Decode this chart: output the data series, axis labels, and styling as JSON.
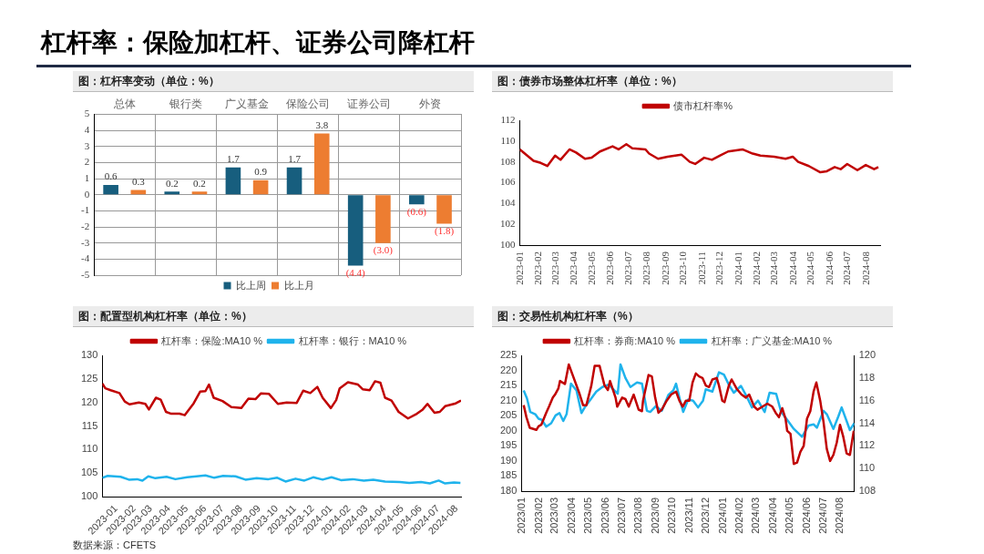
{
  "chart_data": [
    {
      "type": "bar",
      "title": "杠杆率：保险加杠杆、证券公司降杠杆",
      "subtitle": "图：杠杆率变动（单位：%）",
      "categories": [
        "总体",
        "银行类",
        "广义基金",
        "保险公司",
        "证券公司",
        "外资"
      ],
      "series": [
        {
          "name": "比上周",
          "color": "#175e7e",
          "values": [
            0.6,
            0.2,
            1.7,
            1.7,
            -4.4,
            -0.6
          ],
          "value_labels": [
            "0.6",
            "0.2",
            "1.7",
            "1.7",
            "(4.4)",
            "(0.6)"
          ]
        },
        {
          "name": "比上月",
          "color": "#ed7d31",
          "values": [
            0.3,
            0.2,
            0.9,
            3.8,
            -3.0,
            -1.8
          ],
          "value_labels": [
            "0.3",
            "0.2",
            "0.9",
            "3.8",
            "(3.0)",
            "(1.8)"
          ]
        }
      ],
      "ylim": [
        -5,
        5
      ],
      "yticks": [
        -5,
        -4,
        -3,
        -2,
        -1,
        0,
        1,
        2,
        3,
        4,
        5
      ],
      "grid": true,
      "legend": "bottom"
    },
    {
      "type": "line",
      "subtitle": "图：债券市场整体杠杆率（单位：%）",
      "marker": "none",
      "legend": "top",
      "xlim": [
        "2023-01-01",
        "2024-08-25"
      ],
      "xticks": [
        "2023-01",
        "2023-02",
        "2023-03",
        "2023-04",
        "2023-05",
        "2023-06",
        "2023-07",
        "2023-08",
        "2023-09",
        "2023-10",
        "2023-11",
        "2023-12",
        "2024-01",
        "2024-02",
        "2024-03",
        "2024-04",
        "2024-05",
        "2024-06",
        "2024-07",
        "2024-08"
      ],
      "ylim": [
        100,
        112
      ],
      "yticks": [
        100,
        102,
        104,
        106,
        108,
        110,
        112
      ],
      "series": [
        {
          "name": "债市杠杆率%",
          "color": "#c00000",
          "x": [
            "2023-01-01",
            "2023-01-24",
            "2023-02-05",
            "2023-02-16",
            "2023-03-01",
            "2023-03-10",
            "2023-03-25",
            "2023-04-05",
            "2023-04-20",
            "2023-05-01",
            "2023-05-15",
            "2023-06-05",
            "2023-06-15",
            "2023-06-28",
            "2023-07-08",
            "2023-07-30",
            "2023-08-05",
            "2023-08-20",
            "2023-09-05",
            "2023-09-28",
            "2023-10-12",
            "2023-10-21",
            "2023-11-05",
            "2023-11-18",
            "2023-12-01",
            "2023-12-15",
            "2024-01-08",
            "2024-01-25",
            "2024-02-07",
            "2024-03-01",
            "2024-03-20",
            "2024-04-01",
            "2024-04-10",
            "2024-04-28",
            "2024-05-17",
            "2024-05-28",
            "2024-06-10",
            "2024-06-20",
            "2024-07-01",
            "2024-07-18",
            "2024-08-01",
            "2024-08-15",
            "2024-08-22"
          ],
          "values": [
            109.2,
            108.1,
            107.9,
            107.6,
            108.6,
            108.2,
            109.2,
            108.9,
            108.3,
            108.4,
            109.0,
            109.5,
            109.2,
            109.7,
            109.3,
            109.2,
            108.8,
            108.3,
            108.5,
            108.7,
            108.0,
            107.8,
            108.4,
            108.2,
            108.6,
            109.0,
            109.2,
            108.8,
            108.6,
            108.5,
            108.3,
            108.5,
            108.0,
            107.6,
            107.0,
            107.1,
            107.5,
            107.3,
            107.8,
            107.2,
            107.7,
            107.3,
            107.5
          ]
        }
      ]
    },
    {
      "type": "line",
      "subtitle": "图：配置型机构杠杆率（单位：%）",
      "marker": "none",
      "legend": "top",
      "annotations": [
        "数据来源：CFETS"
      ],
      "xlim": [
        "2023-01-01",
        "2024-09-01"
      ],
      "xticks": [
        "2023-01",
        "2023-02",
        "2023-03",
        "2023-04",
        "2023-05",
        "2023-06",
        "2023-07",
        "2023-08",
        "2023-09",
        "2023-10",
        "2023-11",
        "2023-12",
        "2024-01",
        "2024-02",
        "2024-03",
        "2024-04",
        "2024-05",
        "2024-06",
        "2024-07",
        "2024-08"
      ],
      "ylim": [
        100,
        130
      ],
      "yticks": [
        100,
        105,
        110,
        115,
        120,
        125,
        130
      ],
      "series": [
        {
          "name": "杠杆率：保险:MA10 %",
          "color": "#c00000",
          "x": [
            "2023-01-01",
            "2023-01-06",
            "2023-01-15",
            "2023-01-30",
            "2023-02-08",
            "2023-02-16",
            "2023-03-04",
            "2023-03-15",
            "2023-03-21",
            "2023-04-02",
            "2023-04-10",
            "2023-04-19",
            "2023-04-28",
            "2023-05-12",
            "2023-05-21",
            "2023-06-05",
            "2023-06-16",
            "2023-06-25",
            "2023-07-01",
            "2023-07-09",
            "2023-07-24",
            "2023-08-08",
            "2023-08-25",
            "2023-09-06",
            "2023-09-18",
            "2023-09-27",
            "2023-10-11",
            "2023-10-26",
            "2023-11-10",
            "2023-11-27",
            "2023-12-08",
            "2023-12-20",
            "2024-01-01",
            "2024-01-10",
            "2024-01-24",
            "2024-02-02",
            "2024-02-08",
            "2024-02-22",
            "2024-03-10",
            "2024-03-18",
            "2024-03-30",
            "2024-04-08",
            "2024-04-17",
            "2024-04-25",
            "2024-05-06",
            "2024-05-18",
            "2024-06-03",
            "2024-06-18",
            "2024-06-28",
            "2024-07-06",
            "2024-07-18",
            "2024-07-27",
            "2024-08-05",
            "2024-08-23",
            "2024-09-01"
          ],
          "values": [
            124.0,
            123.0,
            122.6,
            122.0,
            120.2,
            119.6,
            120.0,
            119.7,
            118.5,
            121.0,
            120.6,
            118.0,
            117.6,
            117.6,
            117.3,
            119.8,
            122.3,
            122.4,
            123.8,
            121.0,
            120.3,
            119.0,
            118.8,
            120.8,
            120.7,
            121.9,
            121.8,
            119.7,
            120.0,
            119.9,
            122.5,
            122.0,
            123.3,
            121.0,
            118.8,
            120.5,
            123.0,
            124.3,
            123.8,
            122.8,
            122.6,
            124.5,
            124.2,
            121.0,
            120.4,
            118.0,
            116.6,
            117.6,
            118.5,
            119.7,
            117.8,
            118.0,
            119.2,
            119.8,
            120.4
          ]
        },
        {
          "name": "杠杆率：银行：MA10 %",
          "color": "#1fb3ec",
          "x": [
            "2023-01-01",
            "2023-01-10",
            "2023-02-01",
            "2023-02-15",
            "2023-03-01",
            "2023-03-10",
            "2023-03-20",
            "2023-04-01",
            "2023-04-20",
            "2023-05-05",
            "2023-05-25",
            "2023-06-10",
            "2023-06-25",
            "2023-07-10",
            "2023-07-25",
            "2023-08-15",
            "2023-09-01",
            "2023-09-20",
            "2023-10-10",
            "2023-10-25",
            "2023-11-08",
            "2023-11-25",
            "2023-12-10",
            "2023-12-25",
            "2024-01-10",
            "2024-01-25",
            "2024-02-10",
            "2024-03-01",
            "2024-03-20",
            "2024-04-05",
            "2024-04-25",
            "2024-05-20",
            "2024-06-05",
            "2024-06-25",
            "2024-07-10",
            "2024-07-25",
            "2024-08-05",
            "2024-08-20",
            "2024-08-31"
          ],
          "values": [
            104.0,
            104.4,
            104.2,
            103.6,
            103.7,
            103.4,
            104.3,
            103.9,
            104.2,
            103.7,
            104.1,
            104.3,
            104.5,
            104.0,
            104.4,
            104.3,
            103.6,
            103.9,
            103.7,
            104.0,
            103.2,
            103.8,
            103.4,
            104.1,
            103.6,
            104.1,
            103.5,
            103.7,
            103.4,
            103.6,
            103.2,
            103.1,
            102.9,
            103.1,
            102.8,
            103.4,
            102.8,
            103.0,
            102.9
          ]
        }
      ]
    },
    {
      "type": "line",
      "subtitle": "图：交易性机构杠杆率（%）",
      "marker": "none",
      "legend": "top",
      "xlim": [
        "2023-01-01",
        "2024-08-28"
      ],
      "xticks": [
        {
          "value": "2023-01",
          "label": "2023/01"
        },
        {
          "value": "2023-02",
          "label": "2023/02"
        },
        {
          "value": "2023-03",
          "label": "2023/03"
        },
        {
          "value": "2023-04",
          "label": "2023/04"
        },
        {
          "value": "2023-05",
          "label": "2023/05"
        },
        {
          "value": "2023-06",
          "label": "2023/06"
        },
        {
          "value": "2023-07",
          "label": "2023/07"
        },
        {
          "value": "2023-08",
          "label": "2023/08"
        },
        {
          "value": "2023-09",
          "label": "2023/09"
        },
        {
          "value": "2023-10",
          "label": "2023/10"
        },
        {
          "value": "2023-11",
          "label": "2023/11"
        },
        {
          "value": "2023-12",
          "label": "2023/12"
        },
        {
          "value": "2024-01",
          "label": "2024/01"
        },
        {
          "value": "2024-02",
          "label": "2024/02"
        },
        {
          "value": "2024-03",
          "label": "2024/03"
        },
        {
          "value": "2024-04",
          "label": "2024/04"
        },
        {
          "value": "2024-05",
          "label": "2024/05"
        },
        {
          "value": "2024-06",
          "label": "2024/06"
        },
        {
          "value": "2024-07",
          "label": "2024/07"
        },
        {
          "value": "2024-08",
          "label": "2024/08"
        }
      ],
      "ylim": [
        180,
        225
      ],
      "yticks": [
        180,
        185,
        190,
        195,
        200,
        205,
        210,
        215,
        220,
        225
      ],
      "y2lim": [
        108,
        120
      ],
      "y2ticks": [
        108,
        110,
        112,
        114,
        116,
        118,
        120
      ],
      "series": [
        {
          "name": "杠杆率：券商:MA10 %",
          "color": "#c00000",
          "x": [
            "2023-01-05",
            "2023-01-10",
            "2023-01-16",
            "2023-01-28",
            "2023-02-01",
            "2023-02-06",
            "2023-02-15",
            "2023-02-20",
            "2023-02-27",
            "2023-03-03",
            "2023-03-09",
            "2023-03-12",
            "2023-03-21",
            "2023-03-28",
            "2023-04-03",
            "2023-04-17",
            "2023-04-23",
            "2023-04-29",
            "2023-05-08",
            "2023-05-14",
            "2023-05-23",
            "2023-06-01",
            "2023-06-07",
            "2023-06-11",
            "2023-06-21",
            "2023-06-24",
            "2023-07-03",
            "2023-07-09",
            "2023-07-15",
            "2023-07-24",
            "2023-08-02",
            "2023-08-08",
            "2023-08-10",
            "2023-08-20",
            "2023-08-26",
            "2023-09-01",
            "2023-09-07",
            "2023-09-13",
            "2023-09-22",
            "2023-09-30",
            "2023-10-09",
            "2023-10-15",
            "2023-10-21",
            "2023-10-27",
            "2023-11-02",
            "2023-11-08",
            "2023-11-14",
            "2023-11-20",
            "2023-11-26",
            "2023-12-02",
            "2023-12-08",
            "2023-12-14",
            "2023-12-22",
            "2023-12-26",
            "2024-01-01",
            "2024-01-05",
            "2024-01-13",
            "2024-01-18",
            "2024-01-27",
            "2024-02-05",
            "2024-02-13",
            "2024-02-19",
            "2024-02-28",
            "2024-03-05",
            "2024-03-14",
            "2024-03-23",
            "2024-04-01",
            "2024-04-07",
            "2024-04-13",
            "2024-04-19",
            "2024-04-25",
            "2024-04-28",
            "2024-05-04",
            "2024-05-10",
            "2024-05-16",
            "2024-05-22",
            "2024-05-28",
            "2024-06-03",
            "2024-06-09",
            "2024-06-15",
            "2024-06-20",
            "2024-06-27",
            "2024-07-03",
            "2024-07-09",
            "2024-07-15",
            "2024-07-21",
            "2024-07-27",
            "2024-08-02",
            "2024-08-08",
            "2024-08-14",
            "2024-08-20",
            "2024-08-27"
          ],
          "values": [
            208.5,
            204.5,
            201,
            200.3,
            201.5,
            202,
            206,
            208,
            211,
            212,
            214,
            216.5,
            215.5,
            222,
            219,
            212,
            208.5,
            208.5,
            215,
            221.5,
            221.5,
            215,
            213.5,
            216.5,
            211,
            208,
            211,
            210.5,
            208,
            212,
            207,
            206.5,
            210,
            218.5,
            218,
            211,
            206,
            207,
            210,
            212,
            213,
            210,
            208,
            210,
            210,
            216,
            219,
            218,
            217.5,
            215,
            214.5,
            217,
            217.5,
            215,
            210,
            209.5,
            215,
            217,
            214,
            212,
            211,
            212,
            208,
            207,
            208,
            209,
            208,
            206,
            204.5,
            207.5,
            204,
            200,
            199,
            189,
            189.5,
            193,
            195,
            204,
            206.5,
            213,
            216,
            210,
            203,
            194,
            190,
            192,
            196,
            202,
            198,
            192.5,
            192,
            200
          ]
        },
        {
          "name": "杠杆率：广义基金:MA10 %",
          "color": "#1fb3ec",
          "axis": "y2",
          "x": [
            "2023-01-05",
            "2023-01-11",
            "2023-01-17",
            "2023-01-26",
            "2023-02-01",
            "2023-02-07",
            "2023-02-15",
            "2023-02-24",
            "2023-03-04",
            "2023-03-11",
            "2023-03-18",
            "2023-03-24",
            "2023-04-01",
            "2023-04-11",
            "2023-04-20",
            "2023-04-26",
            "2023-05-08",
            "2023-05-17",
            "2023-05-28",
            "2023-06-07",
            "2023-06-13",
            "2023-06-25",
            "2023-06-30",
            "2023-07-09",
            "2023-07-18",
            "2023-07-30",
            "2023-08-08",
            "2023-08-17",
            "2023-08-23",
            "2023-09-02",
            "2023-09-13",
            "2023-09-25",
            "2023-10-04",
            "2023-10-09",
            "2023-10-16",
            "2023-10-22",
            "2023-10-31",
            "2023-11-09",
            "2023-11-18",
            "2023-11-27",
            "2023-12-02",
            "2023-12-14",
            "2023-12-26",
            "2024-01-04",
            "2024-01-13",
            "2024-01-22",
            "2024-02-04",
            "2024-02-15",
            "2024-02-24",
            "2024-03-06",
            "2024-03-18",
            "2024-03-27",
            "2024-04-08",
            "2024-04-17",
            "2024-04-28",
            "2024-05-10",
            "2024-05-25",
            "2024-06-06",
            "2024-06-15",
            "2024-06-21",
            "2024-07-03",
            "2024-07-09",
            "2024-07-21",
            "2024-07-30",
            "2024-08-05",
            "2024-08-14",
            "2024-08-20",
            "2024-08-28"
          ],
          "values": [
            116.9,
            116.2,
            115.0,
            114.8,
            114.4,
            114.3,
            113.7,
            114.0,
            114.7,
            114.9,
            114.2,
            114.8,
            117.5,
            116.9,
            114.9,
            115.4,
            116.2,
            116.8,
            117.2,
            117.4,
            117.2,
            116.6,
            119.2,
            118.0,
            117.2,
            117.6,
            117.5,
            115.1,
            115.0,
            115.5,
            115.1,
            116.5,
            116.9,
            117.5,
            116.1,
            115.0,
            116.1,
            116.0,
            115.4,
            116.0,
            117.0,
            116.8,
            118.5,
            118.3,
            117.4,
            116.7,
            117.3,
            116.3,
            115.4,
            116.0,
            115.0,
            116.7,
            116.6,
            115.0,
            114.3,
            113.5,
            112.8,
            113.8,
            113.9,
            113.6,
            115.1,
            114.8,
            113.5,
            114.6,
            115.4,
            114.2,
            113.4,
            114.0
          ]
        }
      ]
    }
  ]
}
